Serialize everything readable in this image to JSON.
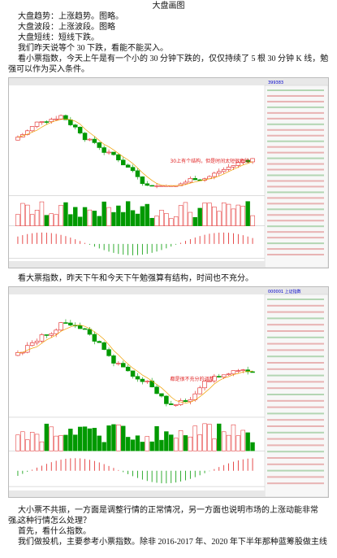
{
  "title": "大盘画图",
  "paragraphs": [
    "大盘趋势：上涨趋势。图略。",
    "大盘波段：上涨波段。图略",
    "大盘短线：短线下跌。",
    "我们昨天说等个 30 下跌，看能不能买入。",
    "看小票指数，今天上午是有一个小的 30 分钟下跌的，仅仅持续了 5 根 30 分钟 K 线，勉强可以作为买入条件。",
    "看大票指数，昨天下午和今天下午勉强算有结构，时间也不充分。",
    "大小票不共振，一方面是调整行情的正常情况，另一方面也说明市场的上涨动能非常强。",
    "这种行情怎么处理？",
    "首先，看什么指数。",
    "我们做投机，主要参考小票指数。除非 2016-2017 年、2020 年下半年那种蓝筹股做主线"
  ],
  "figures": [
    {
      "code": "399383",
      "annotation": "30上有个结构，但是时间太短很危险"
    },
    {
      "code": "000001 上证指数",
      "annotation": "都是很不充分的调整"
    }
  ]
}
